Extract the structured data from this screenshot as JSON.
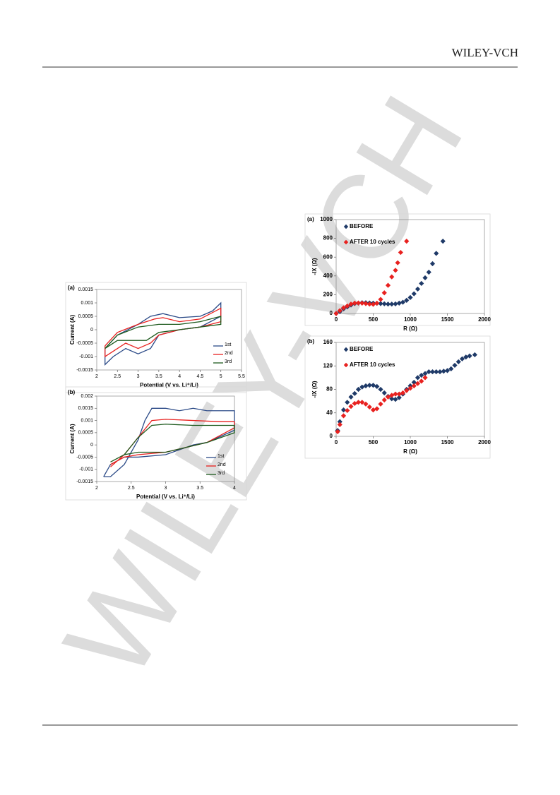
{
  "header": {
    "brand": "WILEY-VCH"
  },
  "watermark": "WILEY-VCH",
  "chart_data": [
    {
      "type": "line",
      "panel": "(a)",
      "x_label": "Potential (V vs. Li⁺/Li)",
      "y_label": "Current (A)",
      "xlim": [
        2,
        5.5
      ],
      "xticks": [
        2,
        2.5,
        3,
        3.5,
        4,
        4.5,
        5,
        5.5
      ],
      "ylim": [
        -0.0015,
        0.0015
      ],
      "yticks": [
        -0.0015,
        -0.001,
        -0.0005,
        0,
        0.0005,
        0.001,
        0.0015
      ],
      "legend": "lower right",
      "series": [
        {
          "name": "1st",
          "color": "#2b4a87",
          "x": [
            2.2,
            2.5,
            3.0,
            3.3,
            3.6,
            4.0,
            4.5,
            4.8,
            5.0,
            5.0,
            4.5,
            4.0,
            3.5,
            3.3,
            3.0,
            2.7,
            2.4,
            2.2,
            2.2
          ],
          "values": [
            -0.0007,
            -0.0002,
            0.0002,
            0.0005,
            0.0006,
            0.00045,
            0.0005,
            0.0007,
            0.001,
            0.0005,
            0.0001,
            0.0,
            -0.0002,
            -0.0007,
            -0.0009,
            -0.0007,
            -0.001,
            -0.0013,
            -0.0007
          ]
        },
        {
          "name": "2nd",
          "color": "#e8211f",
          "x": [
            2.2,
            2.5,
            3.0,
            3.4,
            3.6,
            4.0,
            4.5,
            5.0,
            5.0,
            4.5,
            4.0,
            3.5,
            3.3,
            3.0,
            2.7,
            2.4,
            2.2,
            2.2
          ],
          "values": [
            -0.0006,
            -0.0001,
            0.0002,
            0.0004,
            0.00045,
            0.0003,
            0.0004,
            0.0008,
            0.0003,
            0.0001,
            0.0,
            -0.0002,
            -0.0005,
            -0.0007,
            -0.0005,
            -0.0008,
            -0.001,
            -0.0006
          ]
        },
        {
          "name": "3rd",
          "color": "#1e5a1e",
          "x": [
            2.2,
            2.5,
            3.0,
            3.5,
            4.0,
            4.5,
            5.0,
            5.0,
            4.5,
            4.0,
            3.5,
            3.2,
            2.8,
            2.5,
            2.2
          ],
          "values": [
            -0.0007,
            -0.0002,
            0.0001,
            0.0002,
            0.0002,
            0.0003,
            0.0005,
            0.0002,
            0.0001,
            0.0,
            -0.0001,
            -0.0004,
            -0.0004,
            -0.0004,
            -0.0007
          ]
        }
      ]
    },
    {
      "type": "line",
      "panel": "(b)",
      "x_label": "Potential (V vs. Li⁺/Li)",
      "y_label": "Current (A)",
      "xlim": [
        2,
        4
      ],
      "xticks": [
        2,
        2.5,
        3,
        3.5,
        4
      ],
      "ylim": [
        -0.0015,
        0.002
      ],
      "yticks": [
        -0.0015,
        -0.001,
        -0.0005,
        0,
        0.0005,
        0.001,
        0.0015,
        0.002
      ],
      "legend": "lower right",
      "series": [
        {
          "name": "1st",
          "color": "#2b4a87",
          "x": [
            2.1,
            2.2,
            2.4,
            2.6,
            2.7,
            2.8,
            3.0,
            3.2,
            3.4,
            3.6,
            3.8,
            4.0,
            4.0,
            3.6,
            3.4,
            3.0,
            2.6,
            2.4,
            2.2,
            2.1
          ],
          "values": [
            -0.0013,
            -0.0013,
            -0.0008,
            0.0002,
            0.001,
            0.0015,
            0.0015,
            0.0014,
            0.0015,
            0.0014,
            0.0014,
            0.0014,
            0.0006,
            0.0001,
            0.0,
            -0.0004,
            -0.0005,
            -0.0005,
            -0.0008,
            -0.0013
          ]
        },
        {
          "name": "2nd",
          "color": "#e8211f",
          "x": [
            2.2,
            2.4,
            2.6,
            2.8,
            3.0,
            3.4,
            3.8,
            4.0,
            4.0,
            3.6,
            3.0,
            2.6,
            2.4,
            2.2
          ],
          "values": [
            -0.0009,
            -0.0004,
            0.0003,
            0.001,
            0.00105,
            0.001,
            0.00095,
            0.00095,
            0.0007,
            0.0001,
            -0.0003,
            -0.0004,
            -0.0005,
            -0.0008
          ]
        },
        {
          "name": "3rd",
          "color": "#1e5a1e",
          "x": [
            2.2,
            2.4,
            2.6,
            2.8,
            3.0,
            3.4,
            3.8,
            4.0,
            4.0,
            3.6,
            3.0,
            2.6,
            2.4,
            2.2
          ],
          "values": [
            -0.0007,
            -0.0004,
            0.0003,
            0.0008,
            0.00085,
            0.0008,
            0.0008,
            0.0008,
            0.0005,
            0.0001,
            -0.0003,
            -0.0003,
            -0.0004,
            -0.0007
          ]
        }
      ]
    },
    {
      "type": "scatter",
      "panel": "(a)",
      "x_label": "R (Ω)",
      "y_label": "-IX (Ω)",
      "xlim": [
        0,
        2000
      ],
      "xticks": [
        0,
        500,
        1000,
        1500,
        2000
      ],
      "ylim": [
        0,
        1000
      ],
      "yticks": [
        0,
        200,
        400,
        600,
        800,
        1000
      ],
      "legend": "upper left",
      "series": [
        {
          "name": "BEFORE",
          "color": "#1f3a68",
          "x": [
            0,
            50,
            100,
            150,
            200,
            250,
            300,
            350,
            400,
            450,
            500,
            550,
            600,
            650,
            700,
            750,
            800,
            850,
            900,
            950,
            1000,
            1050,
            1100,
            1150,
            1200,
            1250,
            1300,
            1350,
            1440
          ],
          "values": [
            0,
            20,
            50,
            70,
            90,
            105,
            110,
            115,
            115,
            112,
            110,
            108,
            105,
            103,
            100,
            100,
            102,
            110,
            120,
            140,
            170,
            210,
            260,
            320,
            380,
            440,
            530,
            640,
            770
          ]
        },
        {
          "name": "AFTER 10 cycles",
          "color": "#e8211f",
          "x": [
            0,
            50,
            100,
            150,
            200,
            250,
            300,
            350,
            400,
            450,
            500,
            550,
            600,
            650,
            700,
            750,
            800,
            830,
            870,
            950
          ],
          "values": [
            0,
            30,
            60,
            80,
            100,
            110,
            112,
            110,
            105,
            100,
            98,
            110,
            150,
            220,
            300,
            390,
            460,
            540,
            650,
            770
          ]
        }
      ]
    },
    {
      "type": "scatter",
      "panel": "(b)",
      "x_label": "R (Ω)",
      "y_label": "-IX (Ω)",
      "xlim": [
        0,
        2000
      ],
      "xticks": [
        0,
        500,
        1000,
        1500,
        2000
      ],
      "ylim": [
        0,
        160
      ],
      "yticks": [
        0,
        40,
        80,
        120,
        160
      ],
      "legend": "upper left",
      "series": [
        {
          "name": "BEFORE",
          "color": "#1f3a68",
          "x": [
            20,
            50,
            100,
            150,
            200,
            250,
            300,
            350,
            400,
            450,
            500,
            550,
            600,
            650,
            700,
            750,
            800,
            850,
            900,
            950,
            1000,
            1050,
            1100,
            1150,
            1200,
            1250,
            1300,
            1350,
            1400,
            1450,
            1500,
            1550,
            1600,
            1650,
            1700,
            1750,
            1800,
            1870
          ],
          "values": [
            10,
            25,
            45,
            58,
            67,
            73,
            80,
            84,
            86,
            87,
            87,
            85,
            80,
            74,
            68,
            64,
            63,
            66,
            72,
            80,
            86,
            92,
            100,
            104,
            107,
            110,
            110,
            110,
            110,
            111,
            112,
            115,
            121,
            127,
            132,
            135,
            137,
            139
          ]
        },
        {
          "name": "AFTER 10 cycles",
          "color": "#e8211f",
          "x": [
            20,
            50,
            100,
            150,
            200,
            250,
            300,
            350,
            400,
            450,
            500,
            550,
            600,
            650,
            700,
            750,
            800,
            850,
            900,
            950,
            1000,
            1050,
            1100,
            1150,
            1200
          ],
          "values": [
            8,
            20,
            35,
            44,
            51,
            56,
            58,
            58,
            55,
            50,
            45,
            47,
            55,
            62,
            67,
            70,
            72,
            72,
            74,
            78,
            82,
            86,
            90,
            94,
            100
          ]
        }
      ]
    }
  ]
}
